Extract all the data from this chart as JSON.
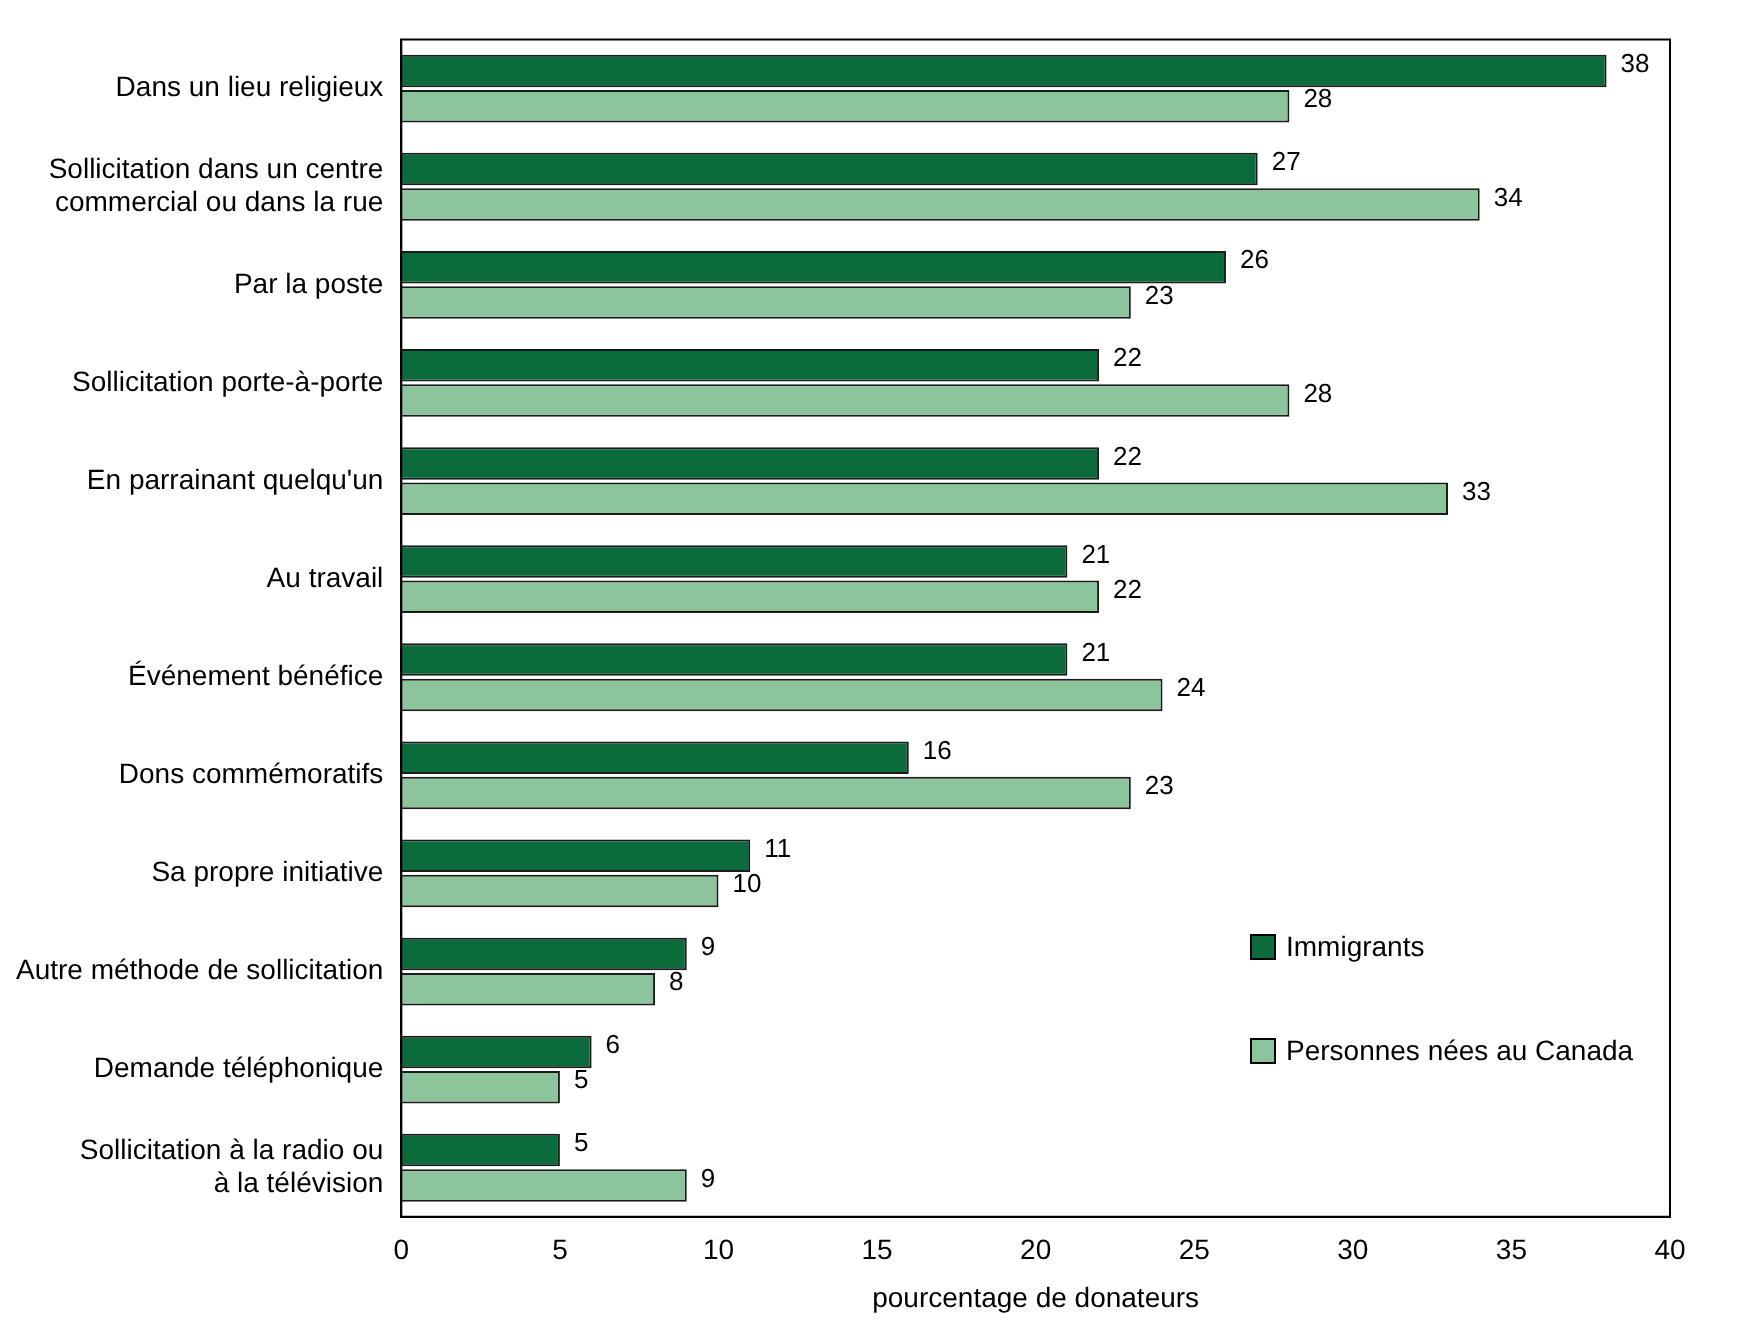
{
  "chart_data": {
    "type": "bar",
    "orientation": "horizontal",
    "xlabel": "pourcentage de donateurs",
    "categories": [
      "Dans un lieu religieux",
      "Sollicitation dans un centre\ncommercial ou dans la rue",
      "Par la poste",
      "Sollicitation porte-à-porte",
      "En parrainant quelqu'un",
      "Au travail",
      "Événement bénéfice",
      "Dons commémoratifs",
      "Sa propre initiative",
      "Autre méthode de sollicitation",
      "Demande téléphonique",
      "Sollicitation à la radio ou\nà la télévision"
    ],
    "series": [
      {
        "name": "Immigrants",
        "color": "#0b6b3a",
        "values": [
          38,
          27,
          26,
          22,
          22,
          21,
          21,
          16,
          11,
          9,
          6,
          5
        ]
      },
      {
        "name": "Personnes nées au Canada",
        "color": "#8cc49c",
        "values": [
          28,
          34,
          23,
          28,
          33,
          22,
          24,
          23,
          10,
          8,
          5,
          9
        ]
      }
    ],
    "xlim": [
      0,
      40
    ],
    "xticks": [
      0,
      5,
      10,
      15,
      20,
      25,
      30,
      35,
      40
    ],
    "grid": false,
    "legend": "bottom right",
    "data_labels": true
  }
}
